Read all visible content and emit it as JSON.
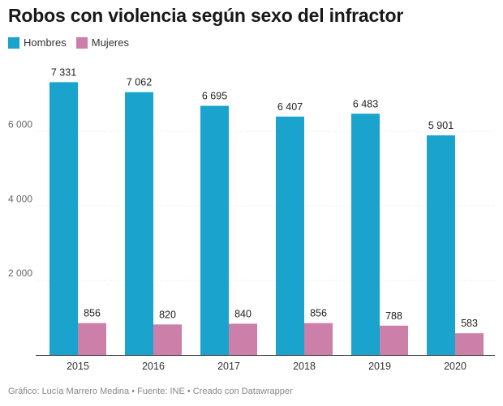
{
  "title": "Robos con violencia según sexo del infractor",
  "footer": "Gráfico: Lucía Marrero Medina • Fuente: INE • Creado con Datawrapper",
  "colors": {
    "Hombres": "#1aa3cd",
    "Mujeres": "#cc7fa9",
    "axis": "#333333",
    "grid": "#e6e6e6"
  },
  "chart_data": {
    "type": "bar",
    "title": "Robos con violencia según sexo del infractor",
    "xlabel": "",
    "ylabel": "",
    "categories": [
      "2015",
      "2016",
      "2017",
      "2018",
      "2019",
      "2020"
    ],
    "series": [
      {
        "name": "Hombres",
        "values": [
          7331,
          7062,
          6695,
          6407,
          6483,
          5901
        ]
      },
      {
        "name": "Mujeres",
        "values": [
          856,
          820,
          840,
          856,
          788,
          583
        ]
      }
    ],
    "value_labels": {
      "Hombres": [
        "7 331",
        "7 062",
        "6 695",
        "6 407",
        "6 483",
        "5 901"
      ],
      "Mujeres": [
        "856",
        "820",
        "840",
        "856",
        "788",
        "583"
      ]
    },
    "ylim": [
      0,
      7500
    ],
    "yticks": [
      2000,
      4000,
      6000
    ],
    "ytick_labels": [
      "2 000",
      "4 000",
      "6 000"
    ],
    "grid": true,
    "legend": "top-left"
  }
}
